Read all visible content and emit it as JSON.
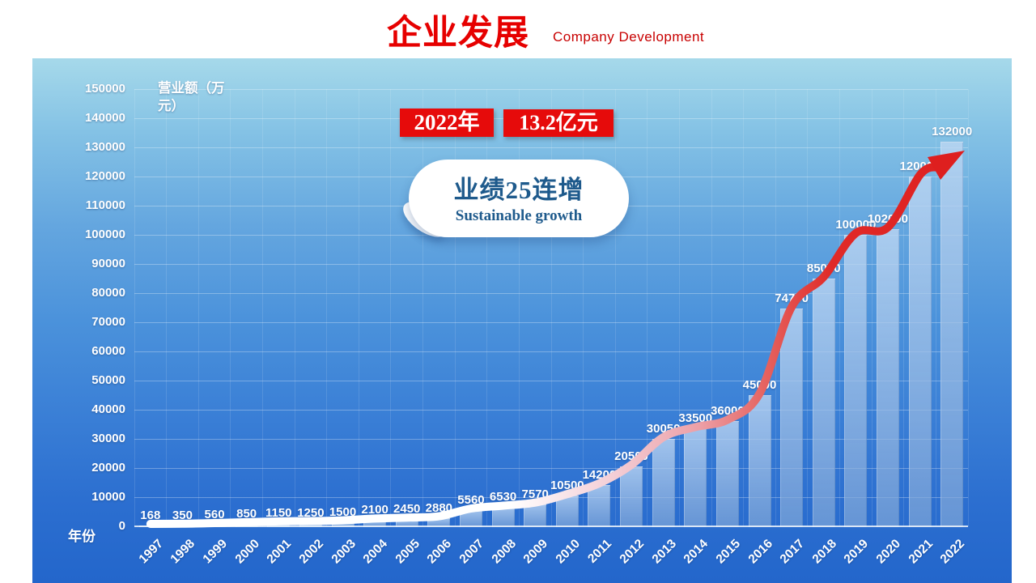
{
  "header": {
    "title": "企业发展",
    "subtitle": "Company Development"
  },
  "callout": {
    "year": "2022年",
    "amount": "13.2亿元"
  },
  "bubble": {
    "title": "业绩25连增",
    "subtitle": "Sustainable growth"
  },
  "chart_data": {
    "type": "bar",
    "title": "",
    "ylabel": "营业额（万元）",
    "xlabel": "年份",
    "categories": [
      "1997",
      "1998",
      "1999",
      "2000",
      "2001",
      "2002",
      "2003",
      "2004",
      "2005",
      "2006",
      "2007",
      "2008",
      "2009",
      "2010",
      "2011",
      "2012",
      "2013",
      "2014",
      "2015",
      "2016",
      "2017",
      "2018",
      "2019",
      "2020",
      "2021",
      "2022"
    ],
    "values": [
      168,
      350,
      560,
      850,
      1150,
      1250,
      1500,
      2100,
      2450,
      2880,
      5560,
      6530,
      7570,
      10500,
      14200,
      20500,
      30050,
      33500,
      36000,
      45000,
      74700,
      85000,
      100000,
      102000,
      120000,
      132000
    ],
    "ylim": [
      0,
      150000
    ],
    "ytick_step": 10000,
    "yticks": [
      0,
      10000,
      20000,
      30000,
      40000,
      50000,
      60000,
      70000,
      80000,
      90000,
      100000,
      110000,
      120000,
      130000,
      140000,
      150000
    ],
    "grid": true,
    "legend": "none",
    "annotation": "white-to-red smoothed growth arrow following the series, arrowhead at 2022"
  },
  "colors": {
    "title_red": "#e60000",
    "subtitle_red": "#c80000",
    "badge_red": "#e60b0b",
    "bubble_text_blue": "#1e5a8c",
    "panel_gradient_top": "#a6d9ea",
    "panel_gradient_bottom": "#2366cb",
    "bar_fill": "rgba(160,195,235,0.72)",
    "chart_text": "#ffffff",
    "arrow_start": "#ffffff",
    "arrow_mid": "#ec9fa6",
    "arrow_end": "#de1f1f"
  }
}
